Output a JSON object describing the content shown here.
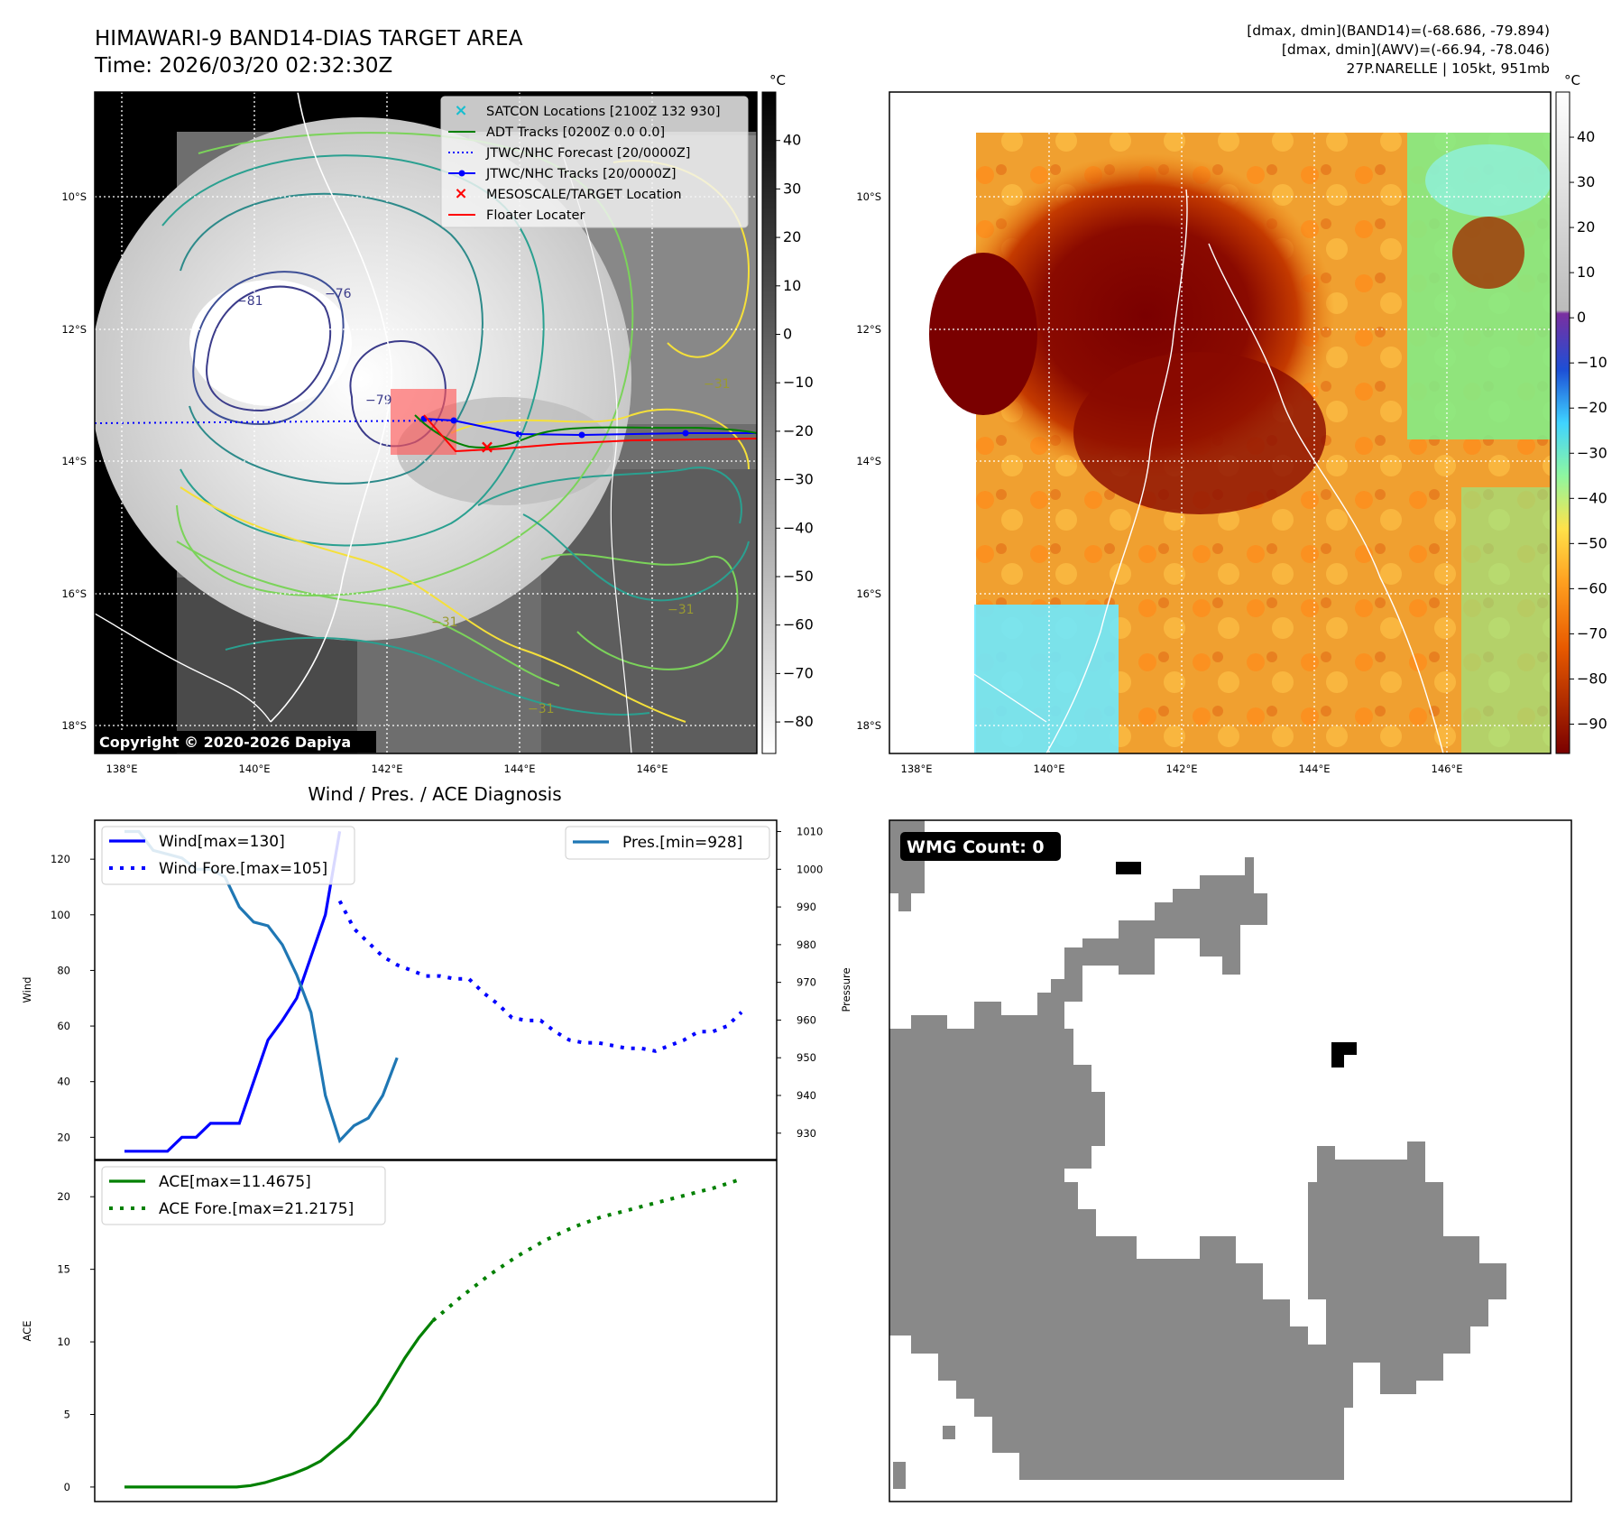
{
  "header": {
    "title_line1": "HIMAWARI-9 BAND14-DIAS TARGET AREA",
    "title_line2": "Time: 2026/03/20 02:32:30Z",
    "info_line1": "[dmax, dmin](BAND14)=(-68.686, -79.894)",
    "info_line2": "[dmax, dmin](AWV)=(-66.94, -78.046)",
    "info_line3": "27P.NARELLE | 105kt, 951mb"
  },
  "map_panel": {
    "unit": "°C",
    "copyright": "Copyright © 2020-2026 Dapiya",
    "lat_labels": [
      "10°S",
      "12°S",
      "14°S",
      "16°S",
      "18°S"
    ],
    "lon_labels": [
      "138°E",
      "140°E",
      "142°E",
      "144°E",
      "146°E"
    ],
    "colorbar_ticks": [
      "40",
      "30",
      "20",
      "10",
      "0",
      "−10",
      "−20",
      "−30",
      "−40",
      "−50",
      "−60",
      "−70",
      "−80"
    ],
    "contour_labels": [
      "−81",
      "−76",
      "−79",
      "−31",
      "−31",
      "−31",
      "−31"
    ],
    "legend": [
      {
        "label": "SATCON Locations [2100Z 132 930]",
        "color": "#17becf",
        "style": "x"
      },
      {
        "label": "ADT Tracks [0200Z 0.0 0.0]",
        "color": "#008000",
        "style": "line"
      },
      {
        "label": "JTWC/NHC Forecast [20/0000Z]",
        "color": "#0000ff",
        "style": "dot"
      },
      {
        "label": "JTWC/NHC Tracks [20/0000Z]",
        "color": "#0000ff",
        "style": "line-dot"
      },
      {
        "label": "MESOSCALE/TARGET Location",
        "color": "#ff0000",
        "style": "x"
      },
      {
        "label": "Floater Locater",
        "color": "#ff0000",
        "style": "line"
      }
    ]
  },
  "awv_panel": {
    "unit": "°C",
    "lat_labels": [
      "10°S",
      "12°S",
      "14°S",
      "16°S",
      "18°S"
    ],
    "lon_labels": [
      "138°E",
      "140°E",
      "142°E",
      "144°E",
      "146°E"
    ],
    "colorbar_ticks": [
      "40",
      "30",
      "20",
      "10",
      "0",
      "−10",
      "−20",
      "−30",
      "−40",
      "−50",
      "−60",
      "−70",
      "−80",
      "−90"
    ]
  },
  "wmg_panel": {
    "badge": "WMG Count: 0"
  },
  "chart_data": [
    {
      "type": "line",
      "title": "Wind / Pres. / ACE Diagnosis",
      "ylabel": "Wind",
      "ylabel_right": "Pressure",
      "ylim": [
        12,
        134
      ],
      "ylim_right": [
        923,
        1013
      ],
      "yticks": [
        20,
        40,
        60,
        80,
        100,
        120
      ],
      "yticks_right": [
        930,
        940,
        950,
        960,
        970,
        980,
        990,
        1000,
        1010
      ],
      "legend_left": [
        "Wind[max=130]",
        "Wind Fore.[max=105]"
      ],
      "legend_right": [
        "Pres.[min=928]"
      ],
      "series": [
        {
          "name": "Wind",
          "color": "#0000ff",
          "style": "solid",
          "x": [
            0,
            1,
            2,
            3,
            4,
            5,
            6,
            7,
            8,
            9,
            10,
            11,
            12,
            13,
            14,
            15
          ],
          "values": [
            15,
            15,
            15,
            15,
            20,
            20,
            25,
            25,
            25,
            40,
            55,
            62,
            70,
            85,
            100,
            130
          ]
        },
        {
          "name": "Wind Fore.",
          "color": "#0000ff",
          "style": "dotted",
          "x": [
            15,
            16,
            17,
            18,
            19,
            20,
            21,
            22,
            23,
            24,
            25,
            26,
            27,
            28,
            29,
            30,
            31,
            32,
            33,
            34,
            35,
            36,
            37,
            38,
            39,
            40,
            41,
            42,
            43
          ],
          "values": [
            105,
            95,
            90,
            85,
            82,
            80,
            78,
            78,
            77,
            77,
            72,
            68,
            63,
            62,
            62,
            58,
            55,
            54,
            54,
            53,
            52,
            52,
            51,
            53,
            55,
            58,
            58,
            60,
            65
          ]
        },
        {
          "name": "Pres.",
          "color": "#1f77b4",
          "style": "solid",
          "axis": "right",
          "x": [
            0,
            1,
            2,
            3,
            4,
            5,
            6,
            7,
            8,
            9,
            10,
            11,
            12,
            13,
            14,
            15,
            16,
            17,
            18,
            19
          ],
          "values": [
            1010,
            1010,
            1005,
            1004,
            1003,
            1000,
            1000,
            998,
            990,
            986,
            985,
            980,
            972,
            962,
            940,
            928,
            932,
            934,
            940,
            950
          ]
        }
      ]
    },
    {
      "type": "line",
      "ylabel": "ACE",
      "ylim": [
        -1,
        22.5
      ],
      "yticks": [
        0,
        5,
        10,
        15,
        20
      ],
      "legend": [
        "ACE[max=11.4675]",
        "ACE Fore.[max=21.2175]"
      ],
      "series": [
        {
          "name": "ACE",
          "color": "#008000",
          "style": "solid",
          "x": [
            0,
            2,
            4,
            6,
            8,
            9,
            10,
            11,
            12,
            13,
            14,
            15,
            16,
            17,
            18,
            19,
            20,
            21,
            22
          ],
          "values": [
            0,
            0,
            0,
            0,
            0,
            0.1,
            0.3,
            0.6,
            0.9,
            1.3,
            1.8,
            2.6,
            3.4,
            4.5,
            5.7,
            7.3,
            8.9,
            10.3,
            11.4675
          ]
        },
        {
          "name": "ACE Fore.",
          "color": "#008000",
          "style": "dotted",
          "x": [
            22,
            24,
            26,
            28,
            30,
            32,
            34,
            36,
            38,
            40,
            42,
            44
          ],
          "values": [
            11.4675,
            13.1,
            14.6,
            15.9,
            17.0,
            17.9,
            18.6,
            19.1,
            19.6,
            20.1,
            20.6,
            21.2175
          ]
        }
      ]
    }
  ]
}
